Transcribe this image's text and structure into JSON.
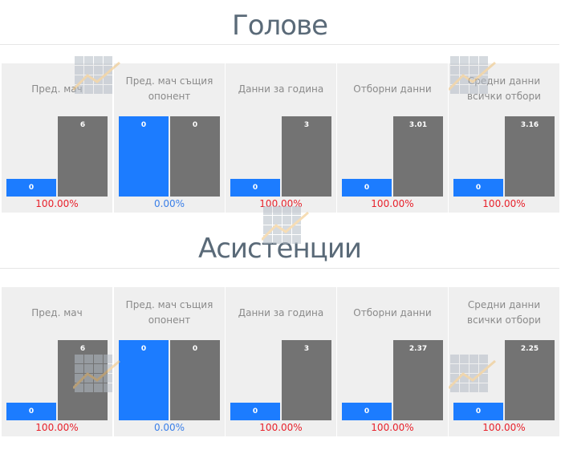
{
  "colors": {
    "blue": "#1c7cff",
    "gray": "#737373",
    "red": "#e8212b",
    "blue_pct": "#3a7fe8"
  },
  "watermark_icon": "bar-line-chart-icon",
  "sections": [
    {
      "title": "Голове",
      "panels": [
        {
          "label": "Пред. мач",
          "blue": 0,
          "gray": 6,
          "blue_label": "0",
          "gray_label": "6",
          "percent": "100.00%",
          "percent_color": "red"
        },
        {
          "label": "Пред. мач същия опонент",
          "blue": 0,
          "gray": 0,
          "blue_label": "0",
          "gray_label": "0",
          "percent": "0.00%",
          "percent_color": "blue"
        },
        {
          "label": "Данни за година",
          "blue": 0,
          "gray": 3,
          "blue_label": "0",
          "gray_label": "3",
          "percent": "100.00%",
          "percent_color": "red"
        },
        {
          "label": "Отборни данни",
          "blue": 0,
          "gray": 3.01,
          "blue_label": "0",
          "gray_label": "3.01",
          "percent": "100.00%",
          "percent_color": "red"
        },
        {
          "label": "Средни данни всички отбори",
          "blue": 0,
          "gray": 3.16,
          "blue_label": "0",
          "gray_label": "3.16",
          "percent": "100.00%",
          "percent_color": "red"
        }
      ]
    },
    {
      "title": "Асистенции",
      "panels": [
        {
          "label": "Пред. мач",
          "blue": 0,
          "gray": 6,
          "blue_label": "0",
          "gray_label": "6",
          "percent": "100.00%",
          "percent_color": "red"
        },
        {
          "label": "Пред. мач същия опонент",
          "blue": 0,
          "gray": 0,
          "blue_label": "0",
          "gray_label": "0",
          "percent": "0.00%",
          "percent_color": "blue"
        },
        {
          "label": "Данни за година",
          "blue": 0,
          "gray": 3,
          "blue_label": "0",
          "gray_label": "3",
          "percent": "100.00%",
          "percent_color": "red"
        },
        {
          "label": "Отборни данни",
          "blue": 0,
          "gray": 2.37,
          "blue_label": "0",
          "gray_label": "2.37",
          "percent": "100.00%",
          "percent_color": "red"
        },
        {
          "label": "Средни данни всички отбори",
          "blue": 0,
          "gray": 2.25,
          "blue_label": "0",
          "gray_label": "2.25",
          "percent": "100.00%",
          "percent_color": "red"
        }
      ]
    }
  ],
  "chart_data": [
    {
      "type": "bar",
      "title": "Голове",
      "categories": [
        "Пред. мач",
        "Пред. мач същия опонент",
        "Данни за година",
        "Отборни данни",
        "Средни данни всички отбори"
      ],
      "series": [
        {
          "values": [
            0,
            0,
            0,
            0,
            0
          ]
        },
        {
          "values": [
            6,
            0,
            3,
            3.01,
            3.16
          ]
        }
      ],
      "percentages": [
        "100.00%",
        "0.00%",
        "100.00%",
        "100.00%",
        "100.00%"
      ]
    },
    {
      "type": "bar",
      "title": "Асистенции",
      "categories": [
        "Пред. мач",
        "Пред. мач същия опонент",
        "Данни за година",
        "Отборни данни",
        "Средни данни всички отбори"
      ],
      "series": [
        {
          "values": [
            0,
            0,
            0,
            0,
            0
          ]
        },
        {
          "values": [
            6,
            0,
            3,
            2.37,
            2.25
          ]
        }
      ],
      "percentages": [
        "100.00%",
        "0.00%",
        "100.00%",
        "100.00%",
        "100.00%"
      ]
    }
  ]
}
